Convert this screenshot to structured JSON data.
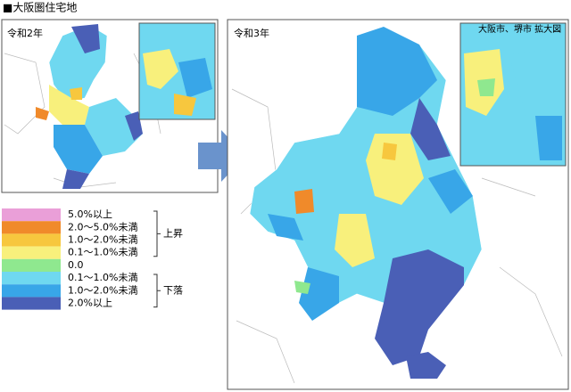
{
  "header": {
    "title": "■大阪圏住宅地"
  },
  "panels": {
    "left": {
      "label": "令和2年"
    },
    "right": {
      "label": "令和3年",
      "inset_label": "大阪市、堺市 拡大図"
    }
  },
  "legend": {
    "items": [
      {
        "label": "5.0%以上",
        "color": "#ea9fd8"
      },
      {
        "label": "2.0～5.0%未満",
        "color": "#f08a2a"
      },
      {
        "label": "1.0～2.0%未満",
        "color": "#f7c73e"
      },
      {
        "label": "0.1～1.0%未満",
        "color": "#f8f07c"
      },
      {
        "label": "0.0",
        "color": "#8fe88f"
      },
      {
        "label": "0.1～1.0%未満",
        "color": "#6fd8f0"
      },
      {
        "label": "1.0～2.0%未満",
        "color": "#38a6e8"
      },
      {
        "label": "2.0%以上",
        "color": "#4a5fb6"
      }
    ],
    "groups": {
      "up": "上昇",
      "down": "下落"
    }
  }
}
